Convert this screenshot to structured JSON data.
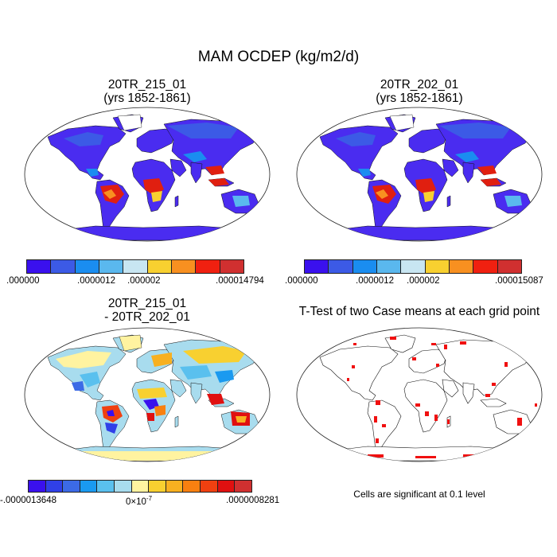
{
  "title": "MAM OCDEP (kg/m2/d)",
  "panels": {
    "top_left": {
      "title_line1": "20TR_215_01",
      "title_line2": "(yrs 1852-1861)",
      "colorbar": {
        "colors": [
          "#3a10ee",
          "#3c5ae6",
          "#1a8df0",
          "#5ab8ee",
          "#c8e6f2",
          "#f8d030",
          "#f89020",
          "#f02010",
          "#d03030"
        ],
        "labels": [
          ".000000",
          ".0000012",
          ".000002",
          ".000014794"
        ]
      }
    },
    "top_right": {
      "title_line1": "20TR_202_01",
      "title_line2": "(yrs 1852-1861)",
      "colorbar": {
        "colors": [
          "#3a10ee",
          "#3c5ae6",
          "#1a8df0",
          "#5ab8ee",
          "#c8e6f2",
          "#f8d030",
          "#f89020",
          "#f02010",
          "#d03030"
        ],
        "labels": [
          ".000000",
          ".0000012",
          ".000002",
          ".000015087"
        ]
      }
    },
    "bottom_left": {
      "title_line1": "20TR_215_01",
      "title_line2": "- 20TR_202_01",
      "colorbar": {
        "colors": [
          "#3a10ee",
          "#3040e8",
          "#3c6ae6",
          "#1a9af0",
          "#5ac0ee",
          "#a8dcee",
          "#fff3a0",
          "#f8d030",
          "#f8b020",
          "#f88010",
          "#f04010",
          "#e01010",
          "#d03030"
        ],
        "label_min": "-.0000013648",
        "label_mid_base": "0×10",
        "label_mid_exp": "-7",
        "label_max": ".0000008281"
      }
    },
    "bottom_right": {
      "title": "T-Test of two Case means at each grid point",
      "note": "Cells are significant at 0.1 level"
    }
  }
}
